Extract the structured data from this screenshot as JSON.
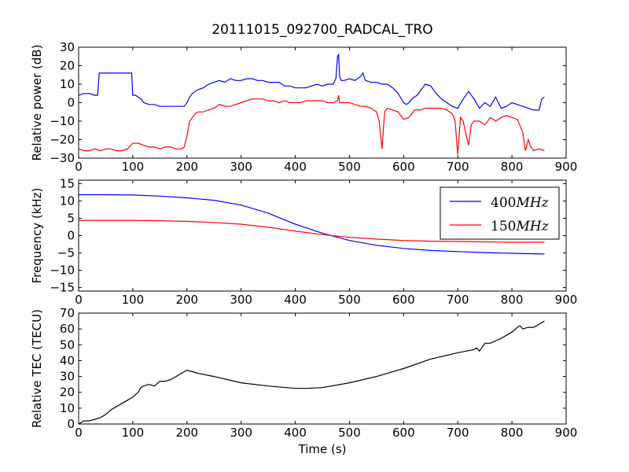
{
  "title": "20111015_092700_RADCAL_TRO",
  "chart_data": [
    {
      "type": "line",
      "title": "20111015_092700_RADCAL_TRO",
      "xlabel": "",
      "ylabel": "Relative power (dB)",
      "xlim": [
        0,
        900
      ],
      "ylim": [
        -30,
        30
      ],
      "xticks": [
        "0",
        "100",
        "200",
        "300",
        "400",
        "500",
        "600",
        "700",
        "800",
        "900"
      ],
      "yticks": [
        "−30",
        "−20",
        "−10",
        "0",
        "10",
        "20",
        "30"
      ],
      "grid": false,
      "legend": "none",
      "series": [
        {
          "color": "#0000ff",
          "x": [
            0,
            10,
            20,
            30,
            35,
            38,
            40,
            50,
            60,
            70,
            80,
            90,
            95,
            98,
            100,
            105,
            110,
            115,
            120,
            130,
            140,
            150,
            160,
            170,
            180,
            190,
            195,
            200,
            205,
            210,
            220,
            230,
            240,
            250,
            260,
            270,
            280,
            290,
            300,
            310,
            320,
            330,
            340,
            350,
            360,
            370,
            380,
            390,
            400,
            410,
            420,
            430,
            440,
            450,
            460,
            470,
            475,
            478,
            480,
            482,
            485,
            490,
            500,
            510,
            520,
            525,
            528,
            530,
            540,
            550,
            560,
            570,
            580,
            590,
            600,
            605,
            610,
            615,
            620,
            625,
            630,
            640,
            650,
            660,
            670,
            680,
            690,
            700,
            710,
            720,
            730,
            740,
            750,
            760,
            770,
            780,
            790,
            800,
            810,
            820,
            830,
            840,
            850,
            855,
            860
          ],
          "y": [
            4,
            5,
            5,
            4,
            4,
            16,
            16,
            16,
            16,
            16,
            16,
            16,
            16,
            16,
            4,
            4,
            3,
            2,
            0,
            -1,
            -1,
            -2,
            -2,
            -2,
            -2,
            -2,
            -2,
            0,
            3,
            5,
            7,
            8,
            10,
            11,
            12,
            11,
            13,
            12,
            12,
            13,
            13,
            12,
            12,
            11,
            11,
            11,
            9,
            9,
            8,
            8,
            8,
            9,
            10,
            9,
            10,
            10,
            13,
            25,
            26,
            14,
            12,
            12,
            13,
            12,
            14,
            16,
            13,
            12,
            11,
            11,
            10,
            10,
            8,
            5,
            0,
            -1,
            0,
            2,
            3,
            4,
            6,
            10,
            9,
            5,
            2,
            0,
            -2,
            -3,
            2,
            6,
            2,
            -3,
            0,
            -2,
            3,
            -3,
            -2,
            0,
            -1,
            -2,
            -3,
            -4,
            -4,
            2,
            3
          ]
        },
        {
          "color": "#ff0000",
          "x": [
            0,
            10,
            20,
            30,
            40,
            50,
            60,
            70,
            80,
            90,
            100,
            110,
            120,
            130,
            140,
            150,
            160,
            170,
            180,
            190,
            195,
            200,
            205,
            210,
            215,
            220,
            230,
            240,
            250,
            260,
            270,
            280,
            290,
            300,
            310,
            320,
            330,
            340,
            350,
            360,
            370,
            380,
            390,
            400,
            410,
            420,
            430,
            440,
            450,
            460,
            470,
            478,
            480,
            482,
            490,
            500,
            510,
            520,
            530,
            540,
            550,
            555,
            560,
            565,
            570,
            580,
            590,
            600,
            610,
            620,
            630,
            640,
            650,
            660,
            670,
            680,
            690,
            695,
            700,
            705,
            710,
            715,
            720,
            725,
            730,
            740,
            750,
            760,
            770,
            780,
            790,
            800,
            810,
            820,
            825,
            830,
            835,
            840,
            850,
            860
          ],
          "y": [
            -25,
            -26,
            -26,
            -25,
            -26,
            -25,
            -25,
            -26,
            -26,
            -25,
            -22,
            -22,
            -23,
            -24,
            -24,
            -25,
            -24,
            -24,
            -25,
            -25,
            -24,
            -18,
            -10,
            -8,
            -6,
            -5,
            -5,
            -4,
            -3,
            -1,
            -2,
            -2,
            -1,
            0,
            1,
            2,
            2,
            2,
            1,
            1,
            0,
            1,
            0,
            0,
            0,
            1,
            1,
            1,
            1,
            0,
            0,
            1,
            4,
            0,
            0,
            0,
            -1,
            -2,
            -2,
            -3,
            -5,
            -10,
            -25,
            -5,
            -3,
            -4,
            -5,
            -9,
            -8,
            -4,
            -4,
            -3,
            -3,
            -3,
            -3,
            -4,
            -6,
            -10,
            -28,
            -8,
            -10,
            -17,
            -23,
            -12,
            -10,
            -10,
            -12,
            -8,
            -10,
            -8,
            -7,
            -8,
            -9,
            -16,
            -26,
            -20,
            -24,
            -26,
            -25,
            -26
          ]
        }
      ]
    },
    {
      "type": "line",
      "xlabel": "",
      "ylabel": "Frequency (kHz)",
      "xlim": [
        0,
        900
      ],
      "ylim": [
        -16,
        16
      ],
      "xticks": [
        "0",
        "100",
        "200",
        "300",
        "400",
        "500",
        "600",
        "700",
        "800",
        "900"
      ],
      "yticks": [
        "−15",
        "−10",
        "−5",
        "0",
        "5",
        "10",
        "15"
      ],
      "grid": false,
      "legend": "top-right",
      "series": [
        {
          "name": "400MHz",
          "color": "#0000ff",
          "x": [
            0,
            50,
            100,
            150,
            200,
            250,
            300,
            350,
            400,
            450,
            500,
            550,
            600,
            650,
            700,
            750,
            800,
            860
          ],
          "y": [
            11.8,
            11.8,
            11.7,
            11.4,
            10.9,
            10.2,
            8.8,
            6.5,
            3.3,
            0.7,
            -1.4,
            -2.8,
            -3.7,
            -4.3,
            -4.6,
            -4.9,
            -5.1,
            -5.3
          ]
        },
        {
          "name": "150MHz",
          "color": "#ff0000",
          "x": [
            0,
            50,
            100,
            150,
            200,
            250,
            300,
            350,
            400,
            450,
            500,
            550,
            600,
            650,
            700,
            750,
            800,
            860
          ],
          "y": [
            4.4,
            4.4,
            4.4,
            4.3,
            4.1,
            3.8,
            3.3,
            2.4,
            1.3,
            0.3,
            -0.5,
            -1.0,
            -1.4,
            -1.6,
            -1.7,
            -1.8,
            -1.9,
            -1.9
          ]
        }
      ]
    },
    {
      "type": "line",
      "xlabel": "Time (s)",
      "ylabel": "Relative TEC (TECU)",
      "xlim": [
        0,
        900
      ],
      "ylim": [
        0,
        70
      ],
      "xticks": [
        "0",
        "100",
        "200",
        "300",
        "400",
        "500",
        "600",
        "700",
        "800",
        "900"
      ],
      "yticks": [
        "0",
        "10",
        "20",
        "30",
        "40",
        "50",
        "60",
        "70"
      ],
      "grid": false,
      "legend": "none",
      "series": [
        {
          "color": "#000000",
          "x": [
            0,
            10,
            20,
            30,
            40,
            50,
            60,
            70,
            80,
            90,
            100,
            110,
            115,
            120,
            130,
            140,
            150,
            160,
            170,
            180,
            190,
            200,
            210,
            220,
            250,
            300,
            350,
            400,
            420,
            450,
            500,
            550,
            600,
            650,
            700,
            730,
            735,
            740,
            750,
            760,
            780,
            800,
            810,
            815,
            820,
            830,
            840,
            850,
            860
          ],
          "y": [
            0,
            2,
            2,
            3,
            4,
            6,
            9,
            11,
            13,
            15,
            17,
            20,
            23,
            24,
            25,
            24,
            27,
            27,
            28,
            30,
            32,
            34,
            33,
            32,
            30,
            26,
            24,
            22.5,
            22.5,
            23,
            26,
            30,
            35,
            41,
            45,
            47,
            48,
            46,
            51,
            51,
            54,
            58,
            61,
            62,
            60,
            61,
            61,
            63,
            65
          ]
        }
      ]
    }
  ]
}
